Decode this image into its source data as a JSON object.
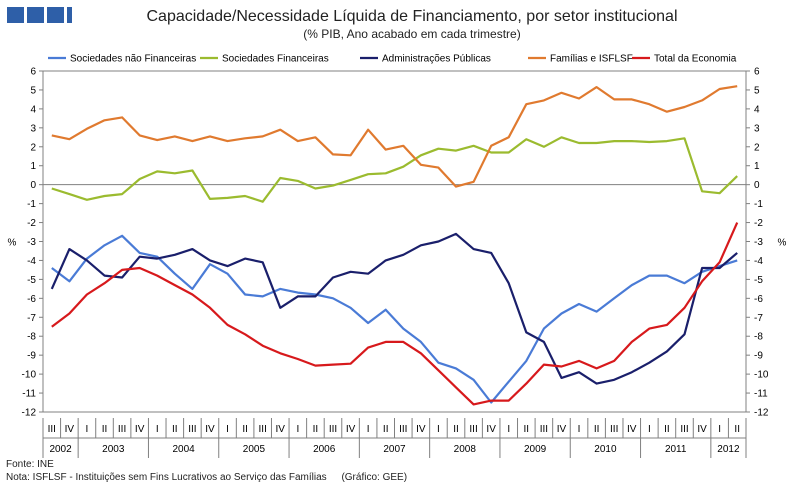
{
  "header": {
    "title": "Capacidade/Necessidade Líquida de Financiamento, por setor institucional",
    "subtitle": "(% PIB, Ano acabado em cada trimestre)",
    "logo_color": "#2E5FA8"
  },
  "footer": {
    "source": "Fonte: INE",
    "note": "Nota: ISFLSF - Instituições sem Fins Lucrativos ao Serviço das Famílias",
    "credit": "(Gráfico: GEE)"
  },
  "chart_data": {
    "type": "line",
    "title": "Capacidade/Necessidade Líquida de Financiamento, por setor institucional",
    "subtitle": "(% PIB, Ano acabado em cada trimestre)",
    "ylabel_left": "%",
    "ylabel_right": "%",
    "ylim": [
      -12,
      6
    ],
    "yticks": [
      6,
      5,
      4,
      3,
      2,
      1,
      0,
      -1,
      -2,
      -3,
      -4,
      -5,
      -6,
      -7,
      -8,
      -9,
      -10,
      -11,
      -12
    ],
    "quarter_labels": [
      "III",
      "IV",
      "I",
      "II",
      "III",
      "IV",
      "I",
      "II",
      "III",
      "IV",
      "I",
      "II",
      "III",
      "IV",
      "I",
      "II",
      "III",
      "IV",
      "I",
      "II",
      "III",
      "IV",
      "I",
      "II",
      "III",
      "IV",
      "I",
      "II",
      "III",
      "IV",
      "I",
      "II",
      "III",
      "IV",
      "I",
      "II",
      "III",
      "IV",
      "I",
      "II"
    ],
    "years": [
      {
        "label": "2002",
        "start": 0,
        "count": 2
      },
      {
        "label": "2003",
        "start": 2,
        "count": 4
      },
      {
        "label": "2004",
        "start": 6,
        "count": 4
      },
      {
        "label": "2005",
        "start": 10,
        "count": 4
      },
      {
        "label": "2006",
        "start": 14,
        "count": 4
      },
      {
        "label": "2007",
        "start": 18,
        "count": 4
      },
      {
        "label": "2008",
        "start": 22,
        "count": 4
      },
      {
        "label": "2009",
        "start": 26,
        "count": 4
      },
      {
        "label": "2010",
        "start": 30,
        "count": 4
      },
      {
        "label": "2011",
        "start": 34,
        "count": 4
      },
      {
        "label": "2012",
        "start": 38,
        "count": 2
      }
    ],
    "series": [
      {
        "name": "Sociedades não Financeiras",
        "color": "#4A7BD6",
        "values": [
          -4.4,
          -5.1,
          -3.9,
          -3.2,
          -2.7,
          -3.6,
          -3.8,
          -4.7,
          -5.5,
          -4.2,
          -4.7,
          -5.8,
          -5.9,
          -5.5,
          -5.7,
          -5.8,
          -6.0,
          -6.5,
          -7.3,
          -6.6,
          -7.6,
          -8.3,
          -9.4,
          -9.7,
          -10.3,
          -11.5,
          -10.4,
          -9.3,
          -7.6,
          -6.8,
          -6.3,
          -6.7,
          -6.0,
          -5.3,
          -4.8,
          -4.8,
          -5.2,
          -4.6,
          -4.3,
          -4.0
        ]
      },
      {
        "name": "Sociedades Financeiras",
        "color": "#9BBB2F",
        "values": [
          -0.2,
          -0.5,
          -0.8,
          -0.6,
          -0.5,
          0.3,
          0.7,
          0.6,
          0.75,
          -0.75,
          -0.7,
          -0.6,
          -0.9,
          0.35,
          0.2,
          -0.2,
          -0.05,
          0.25,
          0.55,
          0.6,
          0.95,
          1.55,
          1.9,
          1.8,
          2.05,
          1.7,
          1.7,
          2.4,
          2.0,
          2.5,
          2.2,
          2.2,
          2.3,
          2.3,
          2.25,
          2.3,
          2.45,
          -0.35,
          -0.45,
          0.45
        ]
      },
      {
        "name": "Administrações Públicas",
        "color": "#1A1F6B",
        "values": [
          -5.5,
          -3.4,
          -4.0,
          -4.8,
          -4.9,
          -3.8,
          -3.9,
          -3.7,
          -3.4,
          -4.0,
          -4.3,
          -3.9,
          -4.1,
          -6.5,
          -5.9,
          -5.9,
          -4.9,
          -4.6,
          -4.7,
          -4.0,
          -3.7,
          -3.2,
          -3.0,
          -2.6,
          -3.4,
          -3.6,
          -5.2,
          -7.8,
          -8.3,
          -10.2,
          -9.9,
          -10.5,
          -10.3,
          -9.9,
          -9.4,
          -8.8,
          -7.9,
          -4.4,
          -4.4,
          -3.6
        ]
      },
      {
        "name": "Famílias e ISFLSF",
        "color": "#E07A2F",
        "values": [
          2.6,
          2.4,
          2.95,
          3.4,
          3.55,
          2.6,
          2.35,
          2.55,
          2.3,
          2.55,
          2.3,
          2.45,
          2.55,
          2.9,
          2.3,
          2.5,
          1.6,
          1.55,
          2.9,
          1.85,
          2.05,
          1.05,
          0.9,
          -0.1,
          0.15,
          2.05,
          2.5,
          4.25,
          4.45,
          4.85,
          4.55,
          5.15,
          4.5,
          4.5,
          4.25,
          3.85,
          4.1,
          4.45,
          5.05,
          5.2
        ]
      },
      {
        "name": "Total da Economia",
        "color": "#D7191C",
        "values": [
          -7.5,
          -6.8,
          -5.8,
          -5.2,
          -4.5,
          -4.4,
          -4.8,
          -5.3,
          -5.8,
          -6.5,
          -7.4,
          -7.9,
          -8.5,
          -8.9,
          -9.2,
          -9.55,
          -9.5,
          -9.45,
          -8.6,
          -8.3,
          -8.3,
          -8.9,
          -9.8,
          -10.7,
          -11.6,
          -11.4,
          -11.4,
          -10.5,
          -9.5,
          -9.6,
          -9.3,
          -9.7,
          -9.3,
          -8.3,
          -7.6,
          -7.4,
          -6.5,
          -5.1,
          -4.1,
          -2.0
        ]
      }
    ],
    "legend_position": "top",
    "grid": false
  }
}
